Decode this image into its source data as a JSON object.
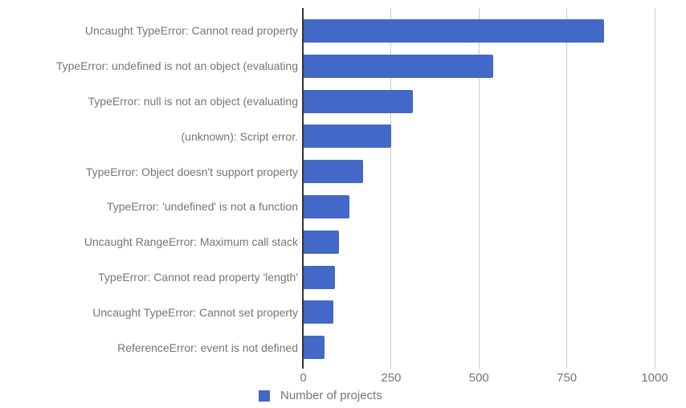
{
  "chart_data": {
    "type": "bar",
    "orientation": "horizontal",
    "title": "",
    "xlabel": "",
    "ylabel": "",
    "categories": [
      "Uncaught TypeError: Cannot read property",
      "TypeError: undefined is not an object (evaluating",
      "TypeError: null is not an object (evaluating",
      "(unknown): Script error.",
      "TypeError: Object doesn't support property",
      "TypeError: 'undefined' is not a function",
      "Uncaught RangeError: Maximum call stack",
      "TypeError: Cannot read property 'length'",
      "Uncaught TypeError: Cannot set property",
      "ReferenceError: event is not defined"
    ],
    "series": [
      {
        "name": "Number of projects",
        "values": [
          855,
          540,
          310,
          250,
          170,
          130,
          100,
          90,
          85,
          60
        ]
      }
    ],
    "x_ticks": [
      0,
      250,
      500,
      750,
      1000
    ],
    "xlim": [
      0,
      1075
    ],
    "grid": true,
    "legend_position": "bottom",
    "colors": {
      "bar": "#4269c8",
      "axis_line": "#333333",
      "gridline": "#cccccc",
      "text": "#757575"
    }
  },
  "legend": {
    "label": "Number of projects"
  }
}
